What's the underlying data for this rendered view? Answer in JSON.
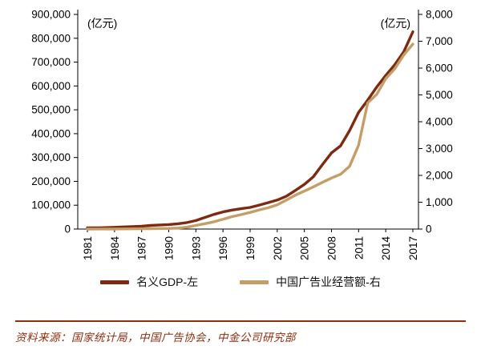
{
  "chart_data": {
    "type": "line",
    "title": "",
    "left_axis": {
      "unit_label": "(亿元)",
      "min": 0,
      "max": 900000,
      "step": 100000,
      "tick_labels": [
        "0",
        "100,000",
        "200,000",
        "300,000",
        "400,000",
        "500,000",
        "600,000",
        "700,000",
        "800,000",
        "900,000"
      ]
    },
    "right_axis": {
      "unit_label": "(亿元)",
      "min": 0,
      "max": 8000,
      "step": 1000,
      "tick_labels": [
        "0",
        "1,000",
        "2,000",
        "3,000",
        "4,000",
        "5,000",
        "6,000",
        "7,000",
        "8,000"
      ]
    },
    "years": [
      1981,
      1982,
      1983,
      1984,
      1985,
      1986,
      1987,
      1988,
      1989,
      1990,
      1991,
      1992,
      1993,
      1994,
      1995,
      1996,
      1997,
      1998,
      1999,
      2000,
      2001,
      2002,
      2003,
      2004,
      2005,
      2006,
      2007,
      2008,
      2009,
      2010,
      2011,
      2012,
      2013,
      2014,
      2015,
      2016,
      2017
    ],
    "x_tick_labels": [
      "1981",
      "1984",
      "1987",
      "1990",
      "1993",
      "1996",
      "1999",
      "2002",
      "2005",
      "2008",
      "2011",
      "2014",
      "2017"
    ],
    "series": [
      {
        "name": "名义GDP-左",
        "axis": "left",
        "color": "#7E2A12",
        "values": [
          4892,
          5323,
          5963,
          7278,
          9099,
          10376,
          12175,
          15180,
          17180,
          18873,
          22006,
          27195,
          35671,
          48638,
          61340,
          71814,
          79715,
          85196,
          90564,
          100280,
          110863,
          121717,
          137422,
          161840,
          187319,
          219439,
          270232,
          319516,
          349081,
          413030,
          489301,
          540367,
          595244,
          643974,
          689052,
          743585,
          827122
        ]
      },
      {
        "name": "中国广告业经营额-右",
        "axis": "right",
        "color": "#C59D66",
        "values": [
          1.2,
          1.5,
          2.3,
          3.6,
          6.0,
          8.4,
          11.1,
          14.9,
          20,
          25,
          35,
          68,
          134,
          200,
          273,
          367,
          462,
          538,
          622,
          712,
          795,
          903,
          1079,
          1264,
          1416,
          1573,
          1741,
          1900,
          2041,
          2340,
          3126,
          4698,
          5020,
          5605,
          5973,
          6489,
          6896
        ]
      }
    ],
    "legend_position": "bottom",
    "grid": false
  },
  "footer": {
    "source_text": "资料来源：国家统计局，中国广告协会，中金公司研究部",
    "color": "#8C2E10"
  }
}
